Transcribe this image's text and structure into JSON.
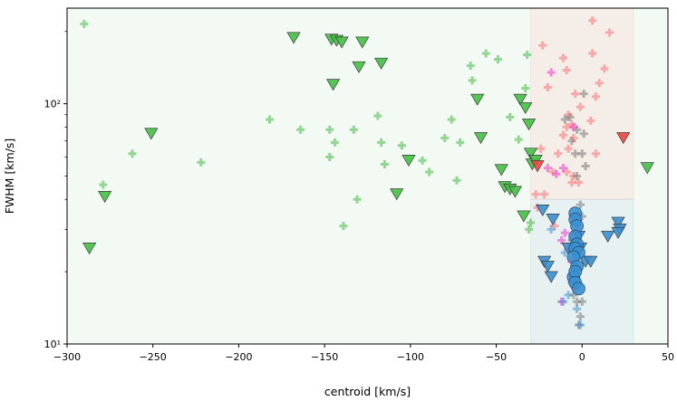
{
  "chart_data": {
    "type": "scatter",
    "title": "",
    "xlabel": "centroid [km/s]",
    "ylabel": "FWHM [km/s]",
    "xlim": [
      -300,
      50
    ],
    "ylim": [
      10,
      250
    ],
    "yscale": "log",
    "x_ticks": [
      -300,
      -250,
      -200,
      -150,
      -100,
      -50,
      0,
      50
    ],
    "x_tick_labels": [
      "−300",
      "−250",
      "−200",
      "−150",
      "−100",
      "−50",
      "0",
      "50"
    ],
    "y_ticks": [
      10,
      100
    ],
    "y_tick_labels": [
      "10¹",
      "10²"
    ],
    "legend": "none",
    "grid": false,
    "regions": [
      {
        "name": "broad-green-region",
        "x": [
          -300,
          50
        ],
        "y": [
          10,
          250
        ],
        "color": "#2ca02c",
        "alpha": 0.06
      },
      {
        "name": "red-region",
        "x": [
          -30,
          30
        ],
        "y": [
          40,
          250
        ],
        "color": "#ff7777",
        "alpha": 0.09
      },
      {
        "name": "blue-region",
        "x": [
          -30,
          30
        ],
        "y": [
          10,
          40
        ],
        "color": "#70a8e0",
        "alpha": 0.09
      }
    ],
    "series": [
      {
        "name": "green-triangles",
        "marker": "triangle-down",
        "color": "#44c044",
        "points": [
          [
            -287,
            25
          ],
          [
            -278,
            41
          ],
          [
            -251,
            75
          ],
          [
            -168,
            188
          ],
          [
            -146,
            185
          ],
          [
            -143,
            183
          ],
          [
            -140,
            180
          ],
          [
            -128,
            180
          ],
          [
            -145,
            120
          ],
          [
            -130,
            142
          ],
          [
            -117,
            147
          ],
          [
            -108,
            42
          ],
          [
            -101,
            58
          ],
          [
            -61,
            104
          ],
          [
            -59,
            72
          ],
          [
            -47,
            53
          ],
          [
            -45,
            45
          ],
          [
            -42,
            44
          ],
          [
            -39,
            43
          ],
          [
            -36,
            104
          ],
          [
            -34,
            34
          ],
          [
            -33,
            96
          ],
          [
            -31,
            82
          ],
          [
            -30,
            62
          ],
          [
            -29,
            56
          ],
          [
            -27,
            58
          ],
          [
            38,
            54
          ]
        ]
      },
      {
        "name": "green-crosses",
        "marker": "plus",
        "color": "#44b844",
        "points": [
          [
            -290,
            215
          ],
          [
            -279,
            46
          ],
          [
            -262,
            62
          ],
          [
            -222,
            57
          ],
          [
            -182,
            86
          ],
          [
            -164,
            78
          ],
          [
            -147,
            78
          ],
          [
            -147,
            60
          ],
          [
            -144,
            69
          ],
          [
            -133,
            78
          ],
          [
            -131,
            40
          ],
          [
            -139,
            31
          ],
          [
            -119,
            89
          ],
          [
            -117,
            69
          ],
          [
            -115,
            56
          ],
          [
            -105,
            67
          ],
          [
            -93,
            58
          ],
          [
            -89,
            52
          ],
          [
            -80,
            72
          ],
          [
            -76,
            86
          ],
          [
            -73,
            48
          ],
          [
            -71,
            69
          ],
          [
            -65,
            144
          ],
          [
            -64,
            125
          ],
          [
            -56,
            162
          ],
          [
            -49,
            153
          ],
          [
            -42,
            88
          ],
          [
            -37,
            71
          ],
          [
            -33,
            116
          ],
          [
            -32,
            160
          ],
          [
            -31,
            30
          ],
          [
            -30,
            32
          ]
        ]
      },
      {
        "name": "red-triangles",
        "marker": "triangle-down",
        "color": "#ee4444",
        "points": [
          [
            -26,
            55
          ],
          [
            24,
            72
          ]
        ]
      },
      {
        "name": "red-crosses",
        "marker": "plus",
        "color": "#ff7070",
        "points": [
          [
            6,
            222
          ],
          [
            16,
            198
          ],
          [
            -23,
            175
          ],
          [
            -11,
            155
          ],
          [
            6,
            162
          ],
          [
            -9,
            138
          ],
          [
            13,
            140
          ],
          [
            -20,
            117
          ],
          [
            10,
            122
          ],
          [
            8,
            107
          ],
          [
            -4,
            110
          ],
          [
            -1,
            97
          ],
          [
            -8,
            90
          ],
          [
            -6,
            82
          ],
          [
            -9,
            80
          ],
          [
            -11,
            74
          ],
          [
            -5,
            72
          ],
          [
            -8,
            65
          ],
          [
            5,
            85
          ],
          [
            8,
            62
          ],
          [
            -14,
            62
          ],
          [
            -17,
            52
          ],
          [
            -9,
            52
          ],
          [
            -5,
            50
          ],
          [
            -24,
            65
          ],
          [
            -27,
            42
          ],
          [
            -22,
            42
          ],
          [
            -16,
            31
          ],
          [
            -6,
            47
          ],
          [
            -2,
            47
          ],
          [
            -26,
            37
          ]
        ]
      },
      {
        "name": "magenta-crosses",
        "marker": "plus",
        "color": "#ee33cc",
        "points": [
          [
            -18,
            135
          ],
          [
            -5,
            80
          ],
          [
            -11,
            54
          ],
          [
            -15,
            51
          ],
          [
            -20,
            54
          ],
          [
            -4,
            29
          ],
          [
            -10,
            29
          ],
          [
            -12,
            27
          ],
          [
            -8,
            25
          ],
          [
            -3,
            24
          ],
          [
            -6,
            22
          ],
          [
            -4,
            17
          ],
          [
            -12,
            15
          ]
        ]
      },
      {
        "name": "gray-crosses",
        "marker": "plus",
        "color": "#777777",
        "points": [
          [
            1,
            110
          ],
          [
            -10,
            86
          ],
          [
            -7,
            88
          ],
          [
            -3,
            78
          ],
          [
            1,
            75
          ],
          [
            -4,
            62
          ],
          [
            0,
            62
          ],
          [
            -6,
            70
          ],
          [
            2,
            55
          ],
          [
            -3,
            50
          ],
          [
            -1,
            38
          ],
          [
            0,
            34
          ],
          [
            -3,
            31
          ],
          [
            -6,
            27
          ],
          [
            -4,
            20
          ],
          [
            -5,
            16
          ],
          [
            0,
            15
          ],
          [
            -3,
            15
          ],
          [
            -1,
            13
          ],
          [
            -2,
            12
          ]
        ]
      },
      {
        "name": "blue-crosses",
        "marker": "plus",
        "color": "#3a8fd0",
        "points": [
          [
            -18,
            30
          ],
          [
            -10,
            24
          ],
          [
            -3,
            21
          ],
          [
            -6,
            18
          ],
          [
            -8,
            16
          ],
          [
            -3,
            14
          ],
          [
            -11,
            15
          ],
          [
            -1,
            12
          ]
        ]
      },
      {
        "name": "blue-triangles",
        "marker": "triangle-down",
        "color": "#3a8fd0",
        "points": [
          [
            -23,
            36
          ],
          [
            -17,
            33
          ],
          [
            -2,
            28
          ],
          [
            -1,
            25
          ],
          [
            -22,
            22
          ],
          [
            -20,
            21
          ],
          [
            -18,
            19
          ],
          [
            2,
            22
          ],
          [
            5,
            22
          ],
          [
            15,
            28
          ],
          [
            21,
            32
          ],
          [
            22,
            30
          ],
          [
            21,
            29
          ],
          [
            -8,
            25
          ]
        ]
      },
      {
        "name": "blue-circles",
        "marker": "circle",
        "color": "#3a8fd0",
        "points": [
          [
            -4,
            35
          ],
          [
            -4,
            33
          ],
          [
            -3,
            31
          ],
          [
            -4,
            28
          ],
          [
            -3,
            26
          ],
          [
            -4,
            25
          ],
          [
            -2,
            24
          ],
          [
            -5,
            23
          ],
          [
            -3,
            21
          ],
          [
            -5,
            19
          ],
          [
            -4,
            20
          ],
          [
            -4,
            18
          ],
          [
            -2,
            17
          ]
        ]
      }
    ]
  }
}
